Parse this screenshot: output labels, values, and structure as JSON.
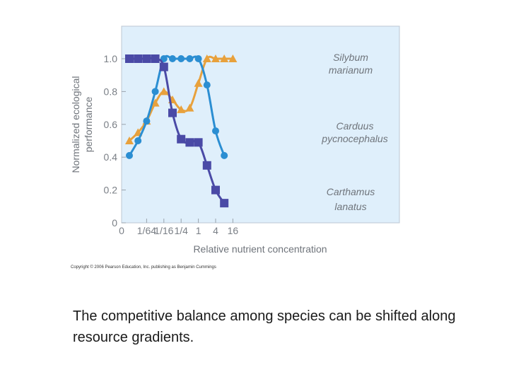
{
  "chart_data": {
    "type": "line",
    "ylabel": "Normalized ecological performance",
    "xlabel": "Relative nutrient concentration",
    "x_ticks": [
      "0",
      "1/64",
      "1/16",
      "1/4",
      "1",
      "4",
      "16"
    ],
    "y_ticks": [
      "0",
      "0.2",
      "0.4",
      "0.6",
      "0.8",
      "1.0"
    ],
    "ylim": [
      0,
      1.1
    ],
    "grid": false,
    "series": [
      {
        "name": "Silybum marianum",
        "label_lines": [
          "Silybum",
          "marianum"
        ],
        "marker": "triangle",
        "color": "#e8a13c",
        "x": [
          0,
          0.5,
          1,
          1.5,
          2,
          2.5,
          3,
          3.5,
          4,
          4.5,
          5,
          5.5,
          6
        ],
        "values": [
          0.5,
          0.55,
          0.62,
          0.73,
          0.8,
          0.75,
          0.69,
          0.7,
          0.85,
          1.0,
          1.0,
          1.0,
          1.0
        ]
      },
      {
        "name": "Carduus pycnocephalus",
        "label_lines": [
          "Carduus",
          "pycnocephalus"
        ],
        "marker": "circle",
        "color": "#2b8ed2",
        "x": [
          0,
          0.5,
          1,
          1.5,
          2,
          2.5,
          3,
          3.5,
          4,
          4.5,
          5,
          5.5
        ],
        "values": [
          0.41,
          0.5,
          0.62,
          0.8,
          1.0,
          1.0,
          1.0,
          1.0,
          1.0,
          0.84,
          0.56,
          0.41
        ]
      },
      {
        "name": "Carthamus lanatus",
        "label_lines": [
          "Carthamus",
          "lanatus"
        ],
        "marker": "square",
        "color": "#4a4aa6",
        "x": [
          0,
          0.5,
          1,
          1.5,
          2,
          2.5,
          3,
          3.5,
          4,
          4.5,
          5,
          5.5
        ],
        "values": [
          1.0,
          1.0,
          1.0,
          1.0,
          0.95,
          0.67,
          0.51,
          0.49,
          0.49,
          0.35,
          0.2,
          0.12
        ]
      }
    ]
  },
  "copyright": "Copyright © 2006 Pearson Education, Inc. publishing as Benjamin Cummings",
  "caption": "The competitive balance among species can be shifted along resource gradients."
}
